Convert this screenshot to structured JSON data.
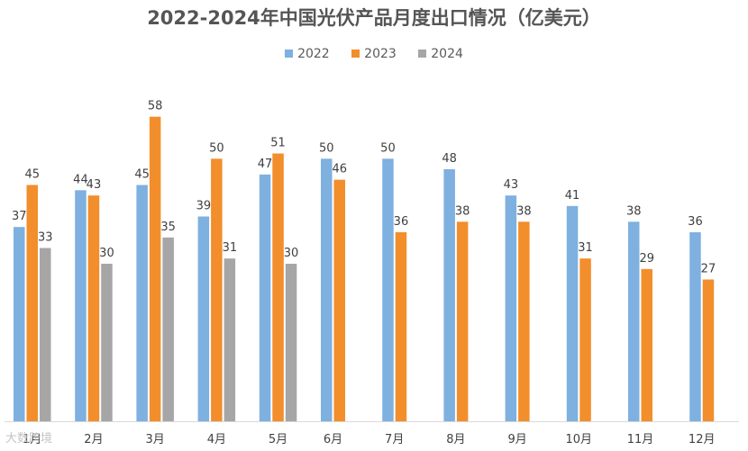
{
  "chart_data": {
    "type": "bar",
    "title": "2022-2024年中国光伏产品月度出口情况（亿美元）",
    "categories": [
      "1月",
      "2月",
      "3月",
      "4月",
      "5月",
      "6月",
      "7月",
      "8月",
      "9月",
      "10月",
      "11月",
      "12月"
    ],
    "series": [
      {
        "name": "2022",
        "color": "#7EB0E0",
        "values": [
          37,
          44,
          45,
          39,
          47,
          50,
          50,
          48,
          43,
          41,
          38,
          36
        ]
      },
      {
        "name": "2023",
        "color": "#F28E2C",
        "values": [
          45,
          43,
          58,
          50,
          51,
          46,
          36,
          38,
          38,
          31,
          29,
          27
        ]
      },
      {
        "name": "2024",
        "color": "#A6A6A6",
        "values": [
          33,
          30,
          35,
          31,
          30,
          null,
          null,
          null,
          null,
          null,
          null,
          null
        ]
      }
    ],
    "ylim": [
      0,
      60
    ],
    "grid": false,
    "legend": "top-center",
    "data_labels": true
  },
  "watermark": "大数跨境"
}
